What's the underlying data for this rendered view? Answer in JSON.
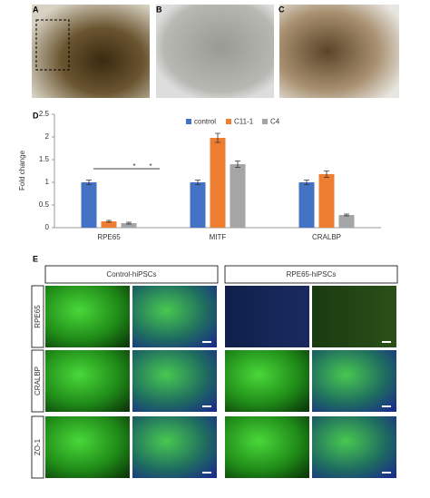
{
  "panels": [
    "A",
    "B",
    "C",
    "D",
    "E"
  ],
  "panel_e": {
    "columns": [
      "Control-hiPSCs",
      "RPE65-hiPSCs"
    ],
    "rows": [
      "RPE65",
      "CRALBP",
      "ZO-1"
    ]
  },
  "chart_data": {
    "type": "bar",
    "y_label": "Fold change",
    "categories": [
      "RPE65",
      "MITF",
      "CRALBP"
    ],
    "series": [
      {
        "name": "control",
        "color": "#4472c4",
        "values": [
          1,
          1,
          1
        ],
        "errors": [
          0.05,
          0.05,
          0.05
        ]
      },
      {
        "name": "C11-1",
        "color": "#ed7d31",
        "values": [
          0.14,
          1.98,
          1.18
        ],
        "errors": [
          0.02,
          0.1,
          0.07
        ]
      },
      {
        "name": "C4",
        "color": "#a5a5a5",
        "values": [
          0.1,
          1.4,
          0.28
        ],
        "errors": [
          0.02,
          0.07,
          0.02
        ]
      }
    ],
    "annotations": [
      "*",
      "*"
    ],
    "ylim": [
      0,
      2.5
    ],
    "yticks": [
      0,
      0.5,
      1,
      1.5,
      2,
      2.5
    ],
    "legend": "top"
  }
}
